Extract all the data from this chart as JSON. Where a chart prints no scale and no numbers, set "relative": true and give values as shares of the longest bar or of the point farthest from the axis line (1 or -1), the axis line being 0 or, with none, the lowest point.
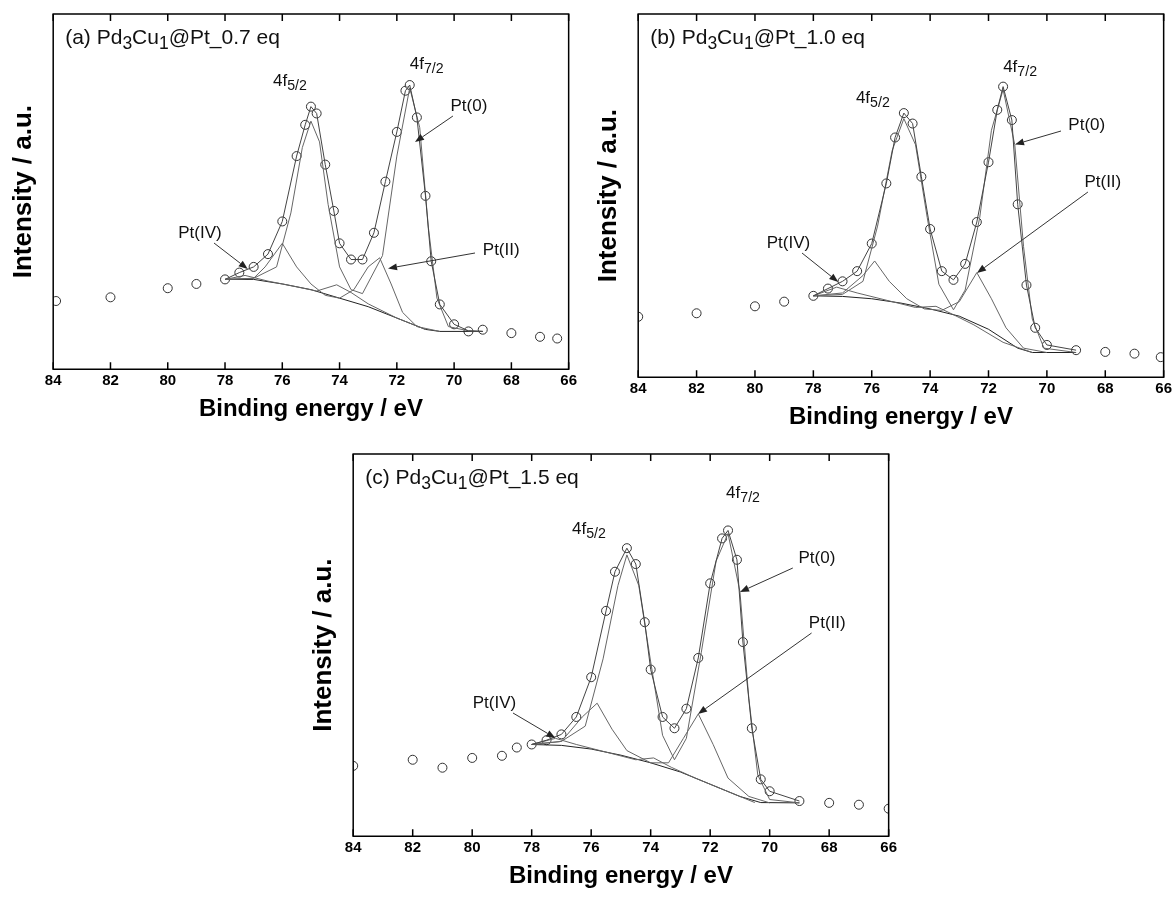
{
  "chart_data": [
    {
      "type": "scatter",
      "title": "(a) Pd$_{3}$Cu$_{1}$@Pt_0.7 eq",
      "xlabel": "Binding energy / eV",
      "ylabel": "Intensity / a.u.",
      "relative": true,
      "xlim": [
        84,
        66
      ],
      "xticks": [
        84,
        82,
        80,
        78,
        76,
        74,
        72,
        70,
        68,
        66
      ],
      "series": [
        {
          "color": "#333333",
          "marker": "circle",
          "x": [
            83.9,
            82,
            80,
            79,
            78,
            77.5,
            77,
            76.5,
            76,
            75.5,
            75.2,
            75,
            74.8,
            74.5,
            74.2,
            74,
            73.6,
            73.2,
            72.8,
            72.4,
            72,
            71.7,
            71.55,
            71.3,
            71,
            70.8,
            70.5,
            70,
            69.5,
            69,
            68,
            67,
            66.4
          ],
          "values": [
            0.24,
            0.253,
            0.285,
            0.3,
            0.316,
            0.34,
            0.36,
            0.405,
            0.52,
            0.75,
            0.86,
            0.924,
            0.9,
            0.72,
            0.557,
            0.443,
            0.386,
            0.386,
            0.48,
            0.66,
            0.835,
            0.98,
            1.0,
            0.886,
            0.61,
            0.38,
            0.228,
            0.158,
            0.133,
            0.139,
            0.127,
            0.114,
            0.108
          ]
        },
        {
          "type": "line",
          "color": "#444444",
          "x": [
            78,
            77.5,
            77,
            76.5,
            76,
            75.5,
            75.2,
            75,
            74.8,
            74.5,
            74.2,
            74,
            73.6,
            73.2,
            72.8,
            72.4,
            72,
            71.7,
            71.55,
            71.3,
            71,
            70.8,
            70.5,
            70,
            69.5,
            69
          ],
          "values": [
            0.316,
            0.34,
            0.36,
            0.405,
            0.52,
            0.75,
            0.86,
            0.924,
            0.9,
            0.72,
            0.557,
            0.443,
            0.386,
            0.386,
            0.48,
            0.66,
            0.835,
            0.98,
            1.0,
            0.886,
            0.61,
            0.38,
            0.228,
            0.158,
            0.135,
            0.133
          ]
        },
        {
          "type": "line",
          "color": "#666666",
          "x": [
            78,
            77,
            76.2,
            75.7,
            75.3,
            75,
            74.7,
            74.4,
            74,
            73.6,
            73.2,
            72.5,
            72,
            71.55,
            71.2,
            70.9,
            70.6,
            70.2,
            69.5,
            69
          ],
          "values": [
            0.316,
            0.32,
            0.36,
            0.55,
            0.78,
            0.873,
            0.8,
            0.58,
            0.36,
            0.28,
            0.266,
            0.4,
            0.75,
            0.99,
            0.85,
            0.5,
            0.25,
            0.15,
            0.135,
            0.133
          ]
        },
        {
          "type": "line",
          "color": "#666666",
          "x": [
            78,
            77,
            76.6,
            76,
            75.5,
            75,
            74.5,
            74,
            73.5,
            73,
            72.6,
            72.2,
            71.8,
            71.3,
            70.5
          ],
          "values": [
            0.316,
            0.32,
            0.36,
            0.443,
            0.36,
            0.3,
            0.26,
            0.25,
            0.28,
            0.36,
            0.392,
            0.3,
            0.2,
            0.15,
            0.133
          ]
        },
        {
          "type": "line",
          "color": "#666666",
          "x": [
            78,
            77.3,
            76.5,
            75.5,
            74.8,
            74.1,
            73.6,
            73,
            72,
            71
          ],
          "values": [
            0.316,
            0.33,
            0.31,
            0.29,
            0.275,
            0.297,
            0.27,
            0.23,
            0.18,
            0.14
          ]
        },
        {
          "type": "line",
          "color": "#222222",
          "x": [
            78,
            77,
            76,
            75,
            74,
            73,
            72,
            71,
            70.5,
            69
          ],
          "values": [
            0.316,
            0.316,
            0.3,
            0.28,
            0.25,
            0.22,
            0.18,
            0.14,
            0.133,
            0.133
          ]
        }
      ],
      "annotations": [
        {
          "text": "4f$_{5/2}$",
          "x": 75.0,
          "y": 0.924
        },
        {
          "text": "4f$_{7/2}$",
          "x": 71.55,
          "y": 1.0
        },
        {
          "text": "Pt(0)",
          "x": 71.37,
          "y": 0.8
        },
        {
          "text": "Pt(II)",
          "x": 72.3,
          "y": 0.354
        },
        {
          "text": "Pt(IV)",
          "x": 77.2,
          "y": 0.354
        }
      ]
    },
    {
      "type": "scatter",
      "title": "(b) Pd$_{3}$Cu$_{1}$@Pt_1.0 eq",
      "xlabel": "Binding energy / eV",
      "ylabel": "Intensity / a.u.",
      "relative": true,
      "xlim": [
        84,
        66
      ],
      "xticks": [
        84,
        82,
        80,
        78,
        76,
        74,
        72,
        70,
        68,
        66
      ],
      "series": [
        {
          "color": "#333333",
          "marker": "circle",
          "x": [
            84,
            82,
            80,
            79,
            78,
            77.5,
            77,
            76.5,
            76,
            75.5,
            75.2,
            74.9,
            74.6,
            74.3,
            74,
            73.6,
            73.2,
            72.8,
            72.4,
            72,
            71.7,
            71.5,
            71.2,
            71,
            70.7,
            70.4,
            70,
            69,
            68,
            67,
            66.1
          ],
          "values": [
            0.208,
            0.22,
            0.244,
            0.26,
            0.28,
            0.305,
            0.33,
            0.365,
            0.46,
            0.667,
            0.825,
            0.909,
            0.873,
            0.69,
            0.51,
            0.365,
            0.335,
            0.39,
            0.534,
            0.74,
            0.92,
            1.0,
            0.885,
            0.595,
            0.317,
            0.17,
            0.111,
            0.093,
            0.087,
            0.081,
            0.069
          ]
        },
        {
          "type": "line",
          "color": "#444444",
          "x": [
            78,
            77.5,
            77,
            76.5,
            76,
            75.5,
            75.2,
            74.9,
            74.6,
            74.3,
            74,
            73.6,
            73.2,
            72.8,
            72.4,
            72,
            71.7,
            71.5,
            71.2,
            71,
            70.7,
            70.4,
            70,
            69
          ],
          "values": [
            0.28,
            0.305,
            0.33,
            0.365,
            0.46,
            0.667,
            0.825,
            0.909,
            0.873,
            0.69,
            0.51,
            0.365,
            0.335,
            0.39,
            0.534,
            0.74,
            0.92,
            1.0,
            0.885,
            0.595,
            0.317,
            0.17,
            0.111,
            0.093
          ]
        },
        {
          "type": "line",
          "color": "#666666",
          "x": [
            78,
            77,
            76.3,
            75.8,
            75.3,
            74.9,
            74.5,
            74.1,
            73.7,
            73.2,
            72.8,
            72.3,
            71.9,
            71.5,
            71.1,
            70.8,
            70.5,
            70.1,
            69
          ],
          "values": [
            0.28,
            0.285,
            0.33,
            0.52,
            0.78,
            0.89,
            0.8,
            0.55,
            0.32,
            0.232,
            0.3,
            0.55,
            0.85,
            0.99,
            0.8,
            0.45,
            0.2,
            0.1,
            0.085
          ]
        },
        {
          "type": "line",
          "color": "#666666",
          "x": [
            78,
            77,
            76.3,
            75.9,
            75.4,
            74.8,
            74.2,
            73.6,
            73,
            72.4,
            71.9,
            71.4,
            70.8,
            70
          ],
          "values": [
            0.28,
            0.29,
            0.35,
            0.4,
            0.33,
            0.27,
            0.235,
            0.23,
            0.26,
            0.36,
            0.27,
            0.17,
            0.1,
            0.085
          ]
        },
        {
          "type": "line",
          "color": "#666666",
          "x": [
            78,
            77.2,
            76.5,
            75.5,
            74.5,
            73.8,
            73.2,
            72.5,
            71.5,
            70.5
          ],
          "values": [
            0.28,
            0.31,
            0.29,
            0.265,
            0.24,
            0.244,
            0.215,
            0.18,
            0.12,
            0.085
          ]
        },
        {
          "type": "line",
          "color": "#222222",
          "x": [
            78,
            77,
            76,
            75,
            74,
            73,
            72,
            71,
            70.5,
            69
          ],
          "values": [
            0.28,
            0.278,
            0.27,
            0.255,
            0.235,
            0.21,
            0.165,
            0.1,
            0.085,
            0.085
          ]
        }
      ],
      "annotations": [
        {
          "text": "4f$_{5/2}$",
          "x": 74.9,
          "y": 0.909
        },
        {
          "text": "4f$_{7/2}$",
          "x": 71.5,
          "y": 1.0
        },
        {
          "text": "Pt(0)",
          "x": 71.1,
          "y": 0.8
        },
        {
          "text": "Pt(II)",
          "x": 72.4,
          "y": 0.36
        },
        {
          "text": "Pt(IV)",
          "x": 77.14,
          "y": 0.329
        }
      ]
    },
    {
      "type": "scatter",
      "title": "(c) Pd$_{3}$Cu$_{1}$@Pt_1.5 eq",
      "xlabel": "Binding energy / eV",
      "ylabel": "Intensity / a.u.",
      "relative": true,
      "xlim": [
        84,
        66
      ],
      "xticks": [
        84,
        82,
        80,
        78,
        76,
        74,
        72,
        70,
        68,
        66
      ],
      "series": [
        {
          "color": "#333333",
          "marker": "circle",
          "x": [
            84,
            82,
            81,
            80,
            79,
            78.5,
            78,
            77.5,
            77,
            76.5,
            76,
            75.5,
            75.2,
            74.8,
            74.5,
            74.2,
            74,
            73.6,
            73.2,
            72.8,
            72.4,
            72,
            71.6,
            71.4,
            71.1,
            70.9,
            70.6,
            70.3,
            70,
            69,
            68,
            67,
            66
          ],
          "values": [
            0.23,
            0.25,
            0.224,
            0.256,
            0.263,
            0.29,
            0.3,
            0.314,
            0.333,
            0.39,
            0.52,
            0.737,
            0.865,
            0.942,
            0.89,
            0.7,
            0.545,
            0.39,
            0.353,
            0.417,
            0.583,
            0.827,
            0.974,
            1.0,
            0.904,
            0.635,
            0.353,
            0.186,
            0.147,
            0.115,
            0.109,
            0.103,
            0.09
          ]
        },
        {
          "type": "line",
          "color": "#444444",
          "x": [
            78,
            77.5,
            77,
            76.5,
            76,
            75.5,
            75.2,
            74.8,
            74.5,
            74.2,
            74,
            73.6,
            73.2,
            72.8,
            72.4,
            72,
            71.6,
            71.4,
            71.1,
            70.9,
            70.6,
            70.3,
            70,
            69
          ],
          "values": [
            0.3,
            0.314,
            0.333,
            0.39,
            0.52,
            0.737,
            0.865,
            0.942,
            0.89,
            0.7,
            0.545,
            0.39,
            0.353,
            0.417,
            0.583,
            0.827,
            0.974,
            1.0,
            0.904,
            0.635,
            0.353,
            0.186,
            0.147,
            0.115
          ]
        },
        {
          "type": "line",
          "color": "#666666",
          "x": [
            78,
            77,
            76.2,
            75.6,
            75.1,
            74.8,
            74.4,
            74,
            73.6,
            73.2,
            72.8,
            72.3,
            71.8,
            71.4,
            71,
            70.7,
            70.4,
            70,
            69
          ],
          "values": [
            0.3,
            0.31,
            0.36,
            0.58,
            0.82,
            0.92,
            0.82,
            0.57,
            0.33,
            0.25,
            0.32,
            0.6,
            0.9,
            0.99,
            0.8,
            0.45,
            0.2,
            0.12,
            0.109
          ]
        },
        {
          "type": "line",
          "color": "#666666",
          "x": [
            78,
            77,
            76.3,
            75.8,
            75.3,
            74.8,
            74,
            73.4,
            72.9,
            72.4,
            71.9,
            71.4,
            70.7,
            70
          ],
          "values": [
            0.3,
            0.31,
            0.39,
            0.435,
            0.35,
            0.28,
            0.24,
            0.24,
            0.32,
            0.4,
            0.3,
            0.19,
            0.13,
            0.109
          ]
        },
        {
          "type": "line",
          "color": "#666666",
          "x": [
            78,
            77.2,
            76.5,
            75.5,
            74.5,
            73.9,
            73.3,
            72.5,
            71.5,
            70.5
          ],
          "values": [
            0.3,
            0.32,
            0.3,
            0.275,
            0.25,
            0.256,
            0.225,
            0.19,
            0.15,
            0.11
          ]
        },
        {
          "type": "line",
          "color": "#222222",
          "x": [
            78,
            77,
            76,
            75,
            74,
            73,
            72,
            71,
            70.3,
            69
          ],
          "values": [
            0.3,
            0.297,
            0.285,
            0.265,
            0.24,
            0.21,
            0.17,
            0.13,
            0.11,
            0.109
          ]
        }
      ],
      "annotations": [
        {
          "text": "4f$_{5/2}$",
          "x": 74.8,
          "y": 0.942
        },
        {
          "text": "4f$_{7/2}$",
          "x": 71.4,
          "y": 1.0
        },
        {
          "text": "Pt(0)",
          "x": 71.0,
          "y": 0.8
        },
        {
          "text": "Pt(II)",
          "x": 72.4,
          "y": 0.4
        },
        {
          "text": "Pt(IV)",
          "x": 77.2,
          "y": 0.32
        }
      ]
    }
  ]
}
